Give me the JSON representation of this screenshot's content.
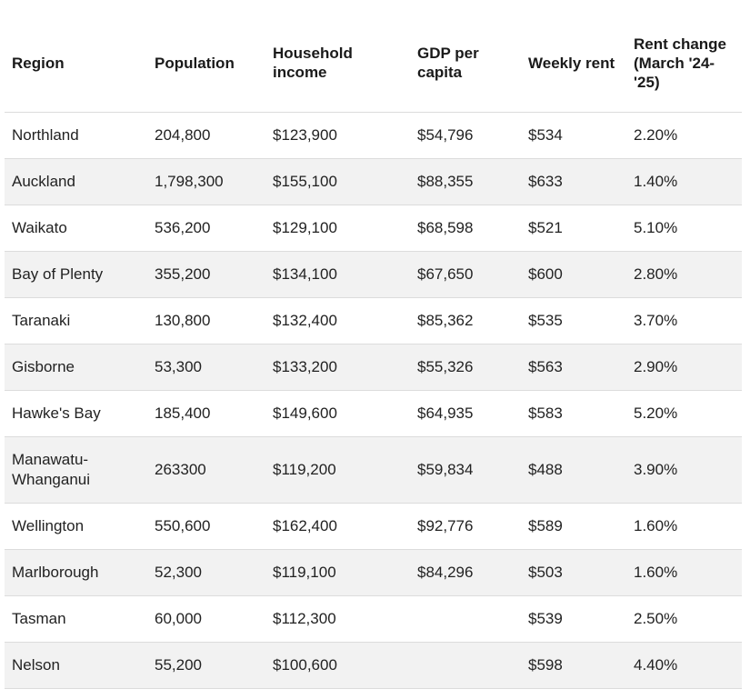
{
  "table": {
    "headers": [
      "Region",
      "Population",
      "Household income",
      "GDP per capita",
      "Weekly rent",
      "Rent change (March '24-'25)"
    ],
    "rows": [
      [
        "Northland",
        "204,800",
        "$123,900",
        "$54,796",
        "$534",
        "2.20%"
      ],
      [
        "Auckland",
        "1,798,300",
        "$155,100",
        "$88,355",
        "$633",
        "1.40%"
      ],
      [
        "Waikato",
        "536,200",
        "$129,100",
        "$68,598",
        "$521",
        "5.10%"
      ],
      [
        "Bay of Plenty",
        "355,200",
        "$134,100",
        "$67,650",
        "$600",
        "2.80%"
      ],
      [
        "Taranaki",
        "130,800",
        "$132,400",
        "$85,362",
        "$535",
        "3.70%"
      ],
      [
        "Gisborne",
        "53,300",
        "$133,200",
        "$55,326",
        "$563",
        "2.90%"
      ],
      [
        "Hawke's Bay",
        "185,400",
        "$149,600",
        "$64,935",
        "$583",
        "5.20%"
      ],
      [
        "Manawatu-Whanganui",
        "263300",
        "$119,200",
        "$59,834",
        "$488",
        "3.90%"
      ],
      [
        "Wellington",
        "550,600",
        "$162,400",
        "$92,776",
        "$589",
        "1.60%"
      ],
      [
        "Marlborough",
        "52,300",
        "$119,100",
        "$84,296",
        "$503",
        "1.60%"
      ],
      [
        "Tasman",
        "60,000",
        "$112,300",
        "",
        "$539",
        "2.50%"
      ],
      [
        "Nelson",
        "55,200",
        "$100,600",
        "",
        "$598",
        "4.40%"
      ]
    ]
  }
}
